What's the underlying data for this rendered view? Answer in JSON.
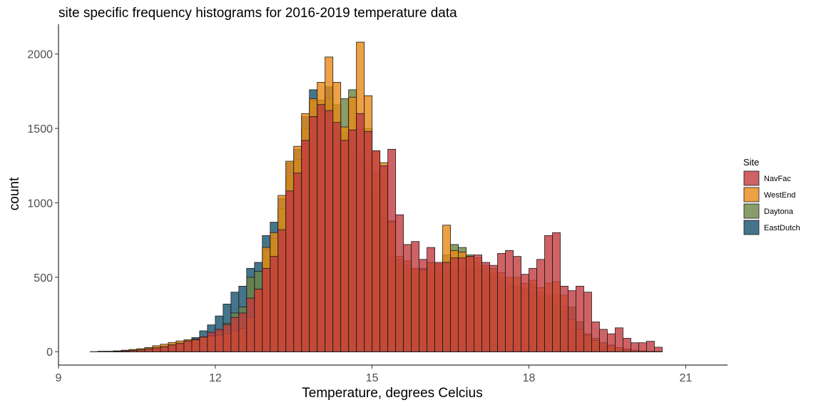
{
  "chart_data": {
    "type": "histogram",
    "title": "site specific frequency histograms for 2016-2019 temperature data",
    "xlabel": "Temperature, degrees Celcius",
    "ylabel": "count",
    "xlim": [
      9,
      21.8
    ],
    "ylim": [
      -90,
      2200
    ],
    "x_ticks": [
      9,
      12,
      15,
      18,
      21
    ],
    "y_ticks": [
      0,
      500,
      1000,
      1500,
      2000
    ],
    "grid": false,
    "bin_width": 0.15,
    "bin_start": 9.6,
    "legend": {
      "title": "Site",
      "placement": "right",
      "items": [
        {
          "label": "NavFac",
          "color": "#C23B3F"
        },
        {
          "label": "WestEnd",
          "color": "#E98A15"
        },
        {
          "label": "Daytona",
          "color": "#6B8545"
        },
        {
          "label": "EastDutch",
          "color": "#17526E"
        }
      ]
    },
    "series": [
      {
        "name": "EastDutch",
        "color": "#17526E",
        "values": [
          0,
          3,
          3,
          5,
          8,
          12,
          18,
          25,
          32,
          40,
          52,
          62,
          75,
          95,
          140,
          180,
          240,
          320,
          400,
          440,
          560,
          600,
          780,
          870,
          1030,
          1270,
          1360,
          1580,
          1760,
          1660,
          1780,
          1510,
          1470,
          1480,
          1370,
          1250,
          1050,
          900,
          640,
          620,
          580,
          560,
          560,
          570,
          550,
          570,
          560,
          560,
          560,
          560,
          520,
          500,
          480,
          450,
          440,
          430,
          400,
          380,
          360,
          340,
          270,
          160,
          130,
          90,
          65,
          45,
          30,
          20,
          12,
          8,
          5,
          3,
          2
        ]
      },
      {
        "name": "Daytona",
        "color": "#6B8545",
        "values": [
          0,
          0,
          0,
          2,
          5,
          8,
          12,
          20,
          25,
          32,
          40,
          48,
          60,
          72,
          100,
          110,
          140,
          190,
          260,
          300,
          500,
          540,
          680,
          760,
          960,
          1180,
          1290,
          1500,
          1690,
          1690,
          1700,
          1660,
          1700,
          1760,
          1500,
          1500,
          1200,
          1240,
          880,
          590,
          550,
          550,
          545,
          600,
          580,
          650,
          720,
          700,
          650,
          600,
          560,
          520,
          500,
          460,
          440,
          420,
          450,
          400,
          380,
          380,
          310,
          300,
          200,
          120,
          90,
          60,
          45,
          28,
          18,
          10,
          6,
          3,
          1
        ]
      },
      {
        "name": "WestEnd",
        "color": "#E98A15",
        "values": [
          0,
          0,
          2,
          5,
          10,
          15,
          20,
          28,
          40,
          50,
          62,
          72,
          80,
          85,
          95,
          105,
          110,
          120,
          140,
          155,
          230,
          420,
          700,
          800,
          1050,
          1280,
          1380,
          1600,
          1700,
          1810,
          1980,
          1810,
          1510,
          1710,
          2080,
          1720,
          1350,
          1270,
          870,
          640,
          610,
          560,
          550,
          600,
          590,
          850,
          680,
          670,
          640,
          630,
          580,
          560,
          530,
          500,
          500,
          460,
          480,
          430,
          460,
          470,
          380,
          220,
          150,
          110,
          75,
          58,
          40,
          28,
          15,
          10,
          5,
          2,
          1
        ]
      },
      {
        "name": "NavFac",
        "color": "#C23B3F",
        "values": [
          0,
          0,
          0,
          2,
          5,
          8,
          12,
          18,
          25,
          32,
          45,
          55,
          72,
          80,
          100,
          130,
          150,
          180,
          230,
          260,
          360,
          420,
          560,
          640,
          820,
          1080,
          1200,
          1420,
          1580,
          1660,
          1620,
          1540,
          1420,
          1490,
          1600,
          1480,
          1350,
          1250,
          1360,
          920,
          720,
          740,
          620,
          700,
          600,
          600,
          630,
          630,
          640,
          650,
          600,
          580,
          660,
          680,
          640,
          520,
          560,
          620,
          780,
          800,
          440,
          410,
          440,
          400,
          200,
          150,
          120,
          160,
          90,
          60,
          60,
          70,
          30
        ]
      }
    ]
  }
}
